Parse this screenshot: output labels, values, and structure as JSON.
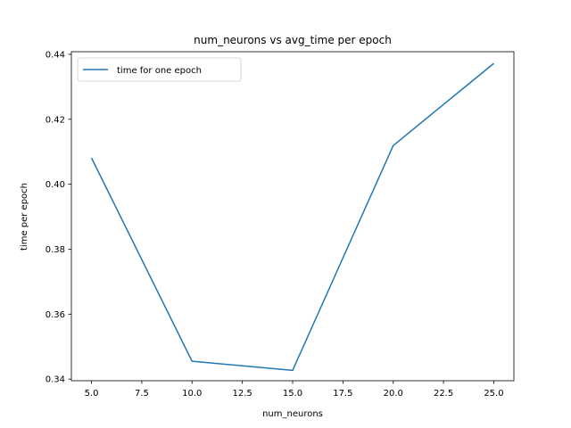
{
  "chart_data": {
    "type": "line",
    "title": "num_neurons vs avg_time per epoch",
    "xlabel": "num_neurons",
    "ylabel": "time per epoch",
    "xlim": [
      4.0,
      26.0
    ],
    "ylim": [
      0.3395,
      0.4408
    ],
    "xticks": [
      5.0,
      7.5,
      10.0,
      12.5,
      15.0,
      17.5,
      20.0,
      22.5,
      25.0
    ],
    "xtick_labels": [
      "5.0",
      "7.5",
      "10.0",
      "12.5",
      "15.0",
      "17.5",
      "20.0",
      "22.5",
      "25.0"
    ],
    "yticks": [
      0.34,
      0.36,
      0.38,
      0.4,
      0.42,
      0.44
    ],
    "ytick_labels": [
      "0.34",
      "0.36",
      "0.38",
      "0.40",
      "0.42",
      "0.44"
    ],
    "legend_position": "upper-left",
    "grid": false,
    "series": [
      {
        "name": "time for one epoch",
        "color": "#1f77b4",
        "x": [
          5,
          10,
          15,
          20,
          25
        ],
        "y": [
          0.4081,
          0.3455,
          0.3427,
          0.4119,
          0.4372
        ]
      }
    ]
  }
}
